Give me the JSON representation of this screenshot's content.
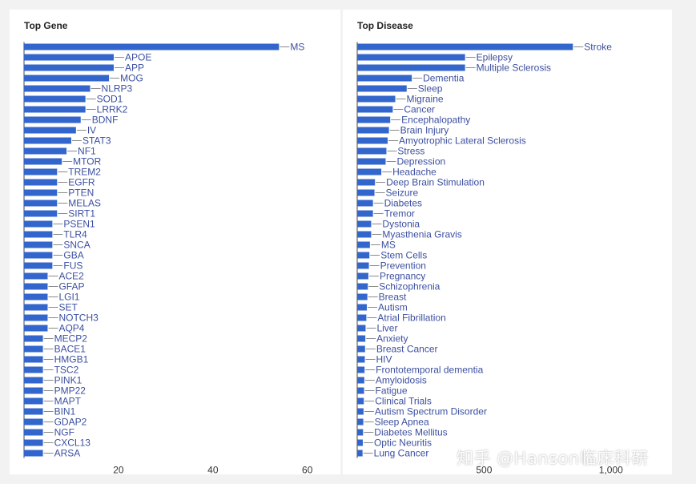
{
  "watermark": "知乎 @Hanson临床科研",
  "colors": {
    "bar": "#3366cc",
    "label": "#3b4fa0",
    "leader": "#8a8a8a",
    "tick": "#333333"
  },
  "chart_data": [
    {
      "type": "bar",
      "orientation": "horizontal",
      "title": "Top Gene",
      "xlabel": "",
      "ylabel": "",
      "xlim": [
        0,
        67
      ],
      "x_ticks": [
        20,
        40,
        60
      ],
      "x_tick_labels": [
        "20",
        "40",
        "60"
      ],
      "grid": false,
      "categories": [
        "MS",
        "APOE",
        "APP",
        "MOG",
        "NLRP3",
        "SOD1",
        "LRRK2",
        "BDNF",
        "IV",
        "STAT3",
        "NF1",
        "MTOR",
        "TREM2",
        "EGFR",
        "PTEN",
        "MELAS",
        "SIRT1",
        "PSEN1",
        "TLR4",
        "SNCA",
        "GBA",
        "FUS",
        "ACE2",
        "GFAP",
        "LGI1",
        "SET",
        "NOTCH3",
        "AQP4",
        "MECP2",
        "BACE1",
        "HMGB1",
        "TSC2",
        "PINK1",
        "PMP22",
        "MAPT",
        "BIN1",
        "GDAP2",
        "NGF",
        "CXCL13",
        "ARSA"
      ],
      "values": [
        54,
        19,
        19,
        18,
        14,
        13,
        13,
        12,
        11,
        10,
        9,
        8,
        7,
        7,
        7,
        7,
        7,
        6,
        6,
        6,
        6,
        6,
        5,
        5,
        5,
        5,
        5,
        5,
        4,
        4,
        4,
        4,
        4,
        4,
        4,
        4,
        4,
        4,
        4,
        4
      ]
    },
    {
      "type": "bar",
      "orientation": "horizontal",
      "title": "Top Disease",
      "xlabel": "",
      "ylabel": "",
      "xlim": [
        0,
        1190
      ],
      "x_ticks": [
        500,
        1000
      ],
      "x_tick_labels": [
        "500",
        "1,000"
      ],
      "grid": false,
      "categories": [
        "Stroke",
        "Epilepsy",
        "Multiple Sclerosis",
        "Dementia",
        "Sleep",
        "Migraine",
        "Cancer",
        "Encephalopathy",
        "Brain Injury",
        "Amyotrophic Lateral Sclerosis",
        "Stress",
        "Depression",
        "Headache",
        "Deep Brain Stimulation",
        "Seizure",
        "Diabetes",
        "Tremor",
        "Dystonia",
        "Myasthenia Gravis",
        "MS",
        "Stem Cells",
        "Prevention",
        "Pregnancy",
        "Schizophrenia",
        "Breast",
        "Autism",
        "Atrial Fibrillation",
        "Liver",
        "Anxiety",
        "Breast Cancer",
        "HIV",
        "Frontotemporal dementia",
        "Amyloidosis",
        "Fatigue",
        "Clinical Trials",
        "Autism Spectrum Disorder",
        "Sleep Apnea",
        "Diabetes Mellitus",
        "Optic Neuritis",
        "Lung Cancer"
      ],
      "values": [
        850,
        425,
        425,
        215,
        195,
        150,
        140,
        130,
        125,
        120,
        115,
        112,
        95,
        70,
        68,
        62,
        62,
        55,
        55,
        50,
        48,
        46,
        44,
        42,
        40,
        38,
        36,
        33,
        32,
        31,
        30,
        29,
        28,
        27,
        26,
        25,
        24,
        23,
        22,
        21
      ]
    }
  ]
}
